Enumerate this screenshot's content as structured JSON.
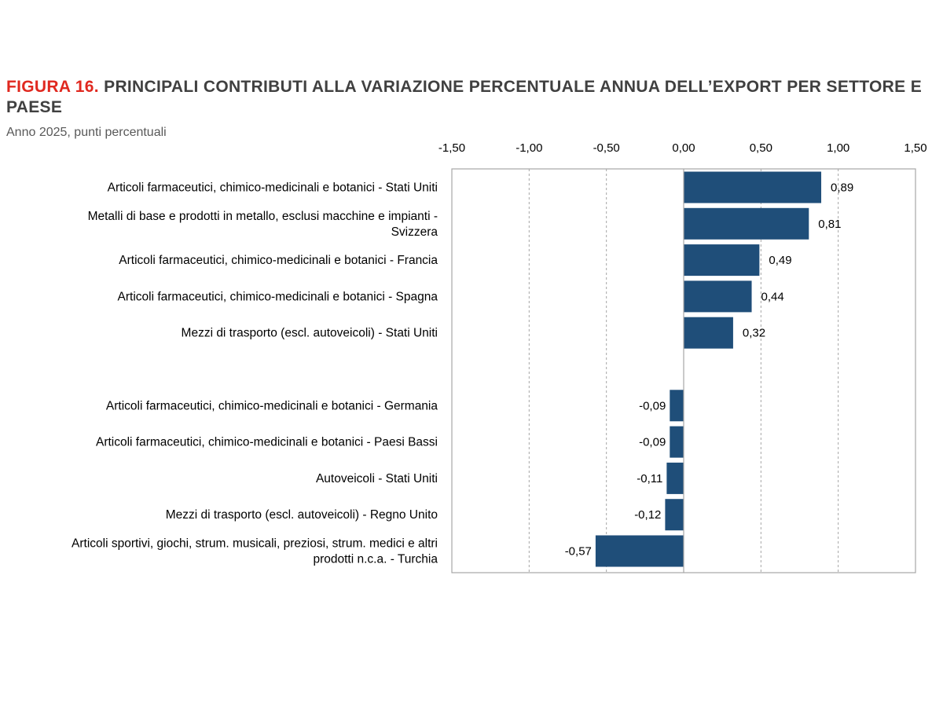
{
  "figure": {
    "label": "FIGURA 16.",
    "title": "PRINCIPALI CONTRIBUTI ALLA VARIAZIONE PERCENTUALE ANNUA DELL’EXPORT PER SETTORE E PAESE",
    "subtitle": "Anno 2025, punti percentuali"
  },
  "colors": {
    "bar": "#1f4e79",
    "title_label": "#e0281f",
    "title_text": "#404040",
    "grid": "#a6a6a6",
    "frame": "#a6a6a6"
  },
  "chart_data": {
    "type": "bar",
    "orientation": "horizontal",
    "title": "PRINCIPALI CONTRIBUTI ALLA VARIAZIONE PERCENTUALE ANNUA DELL’EXPORT PER SETTORE E PAESE",
    "subtitle": "Anno 2025, punti percentuali",
    "xlabel": "",
    "ylabel": "",
    "xlim": [
      -1.5,
      1.5
    ],
    "ticks": [
      -1.5,
      -1.0,
      -0.5,
      0.0,
      0.5,
      1.0,
      1.5
    ],
    "tick_labels": [
      "-1,50",
      "-1,00",
      "-0,50",
      "0,00",
      "0,50",
      "1,00",
      "1,50"
    ],
    "axis_position": "top",
    "grid": "vertical dashed",
    "categories": [
      [
        "Articoli farmaceutici, chimico-medicinali e botanici - Stati Uniti"
      ],
      [
        "Metalli di base e prodotti in metallo, esclusi macchine e impianti -",
        "Svizzera"
      ],
      [
        "Articoli farmaceutici, chimico-medicinali e botanici - Francia"
      ],
      [
        "Articoli farmaceutici, chimico-medicinali e botanici - Spagna"
      ],
      [
        "Mezzi di trasporto (escl. autoveicoli) - Stati Uniti"
      ],
      [
        ""
      ],
      [
        "Articoli farmaceutici, chimico-medicinali e botanici - Germania"
      ],
      [
        "Articoli farmaceutici, chimico-medicinali e botanici - Paesi Bassi"
      ],
      [
        "Autoveicoli - Stati Uniti"
      ],
      [
        "Mezzi di trasporto (escl. autoveicoli) - Regno Unito"
      ],
      [
        "Articoli sportivi, giochi, strum. musicali, preziosi, strum. medici e altri",
        "prodotti n.c.a. - Turchia"
      ]
    ],
    "values": [
      0.89,
      0.81,
      0.49,
      0.44,
      0.32,
      null,
      -0.09,
      -0.09,
      -0.11,
      -0.12,
      -0.57
    ],
    "value_labels": [
      "0,89",
      "0,81",
      "0,49",
      "0,44",
      "0,32",
      "",
      "-0,09",
      "-0,09",
      "-0,11",
      "-0,12",
      "-0,57"
    ]
  }
}
